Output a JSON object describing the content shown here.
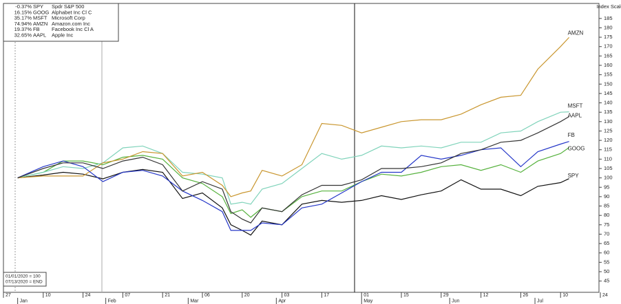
{
  "chart_data": {
    "type": "line",
    "axis_title": "Index Scale",
    "x": [
      "2020-01-01",
      "2020-01-10",
      "2020-01-17",
      "2020-01-24",
      "2020-01-31",
      "2020-02-07",
      "2020-02-14",
      "2020-02-21",
      "2020-02-28",
      "2020-03-06",
      "2020-03-13",
      "2020-03-16",
      "2020-03-20",
      "2020-03-23",
      "2020-03-27",
      "2020-04-03",
      "2020-04-10",
      "2020-04-17",
      "2020-04-24",
      "2020-05-01",
      "2020-05-08",
      "2020-05-15",
      "2020-05-22",
      "2020-05-29",
      "2020-06-05",
      "2020-06-12",
      "2020-06-19",
      "2020-06-26",
      "2020-07-02",
      "2020-07-10",
      "2020-07-13"
    ],
    "series": [
      {
        "name": "SPY",
        "change": "-0.37%",
        "description": "Spdr S&P 500",
        "color": "#111111",
        "values": [
          100,
          101.5,
          103,
          102,
          99.5,
          103,
          104.5,
          103,
          89,
          92,
          84,
          75,
          72,
          69.5,
          77,
          75,
          86,
          88,
          87,
          88,
          90.5,
          88.5,
          91,
          93,
          99,
          94,
          94,
          90.5,
          95.5,
          97.5,
          99.6
        ]
      },
      {
        "name": "GOOG",
        "change": "16.15%",
        "description": "Alphabet Inc Cl C",
        "color": "#55b13c",
        "values": [
          100,
          103,
          109,
          109,
          107,
          111,
          112,
          110,
          100,
          97,
          90,
          81,
          83,
          79,
          84,
          82,
          90,
          93,
          93,
          98,
          102,
          101,
          103,
          106,
          107,
          104,
          107,
          103,
          109,
          113,
          116.2
        ]
      },
      {
        "name": "MSFT",
        "change": "35.17%",
        "description": "Microsoft Corp",
        "color": "#7fd3ba",
        "values": [
          100,
          103,
          106,
          105,
          108,
          116,
          117,
          113,
          103,
          102,
          100,
          86,
          87,
          86,
          94,
          97,
          105,
          113,
          110,
          112,
          117,
          116,
          117,
          116,
          119,
          119,
          124,
          125,
          130,
          135,
          135.2
        ]
      },
      {
        "name": "AMZN",
        "change": "74.94%",
        "description": "Amazon.com Inc",
        "color": "#c9962e",
        "values": [
          100,
          101,
          101,
          101,
          108,
          110,
          114,
          113,
          101,
          103,
          96,
          90,
          92,
          93,
          104,
          101,
          107,
          129,
          128,
          124,
          127,
          130,
          131,
          131,
          134,
          139,
          143,
          144,
          158,
          170,
          174.9
        ]
      },
      {
        "name": "FB",
        "change": "19.37%",
        "description": "Facebook Inc Cl A",
        "color": "#2436c8",
        "values": [
          100,
          106,
          109,
          106,
          98,
          103,
          104,
          101,
          93,
          88,
          82,
          72,
          72,
          72,
          76,
          75,
          84,
          86,
          92,
          98,
          103,
          103,
          112,
          110,
          112,
          115,
          116,
          106,
          114,
          118,
          119.4
        ]
      },
      {
        "name": "AAPL",
        "change": "32.65%",
        "description": "Apple Inc",
        "color": "#333333",
        "values": [
          100,
          105,
          108,
          108,
          105,
          109,
          111,
          107,
          93,
          98,
          94,
          82,
          78,
          76,
          84,
          82,
          91,
          96,
          96,
          99,
          105,
          105,
          106,
          108,
          113,
          115,
          119,
          120,
          124,
          130,
          132.7
        ]
      }
    ],
    "base_note": "01/01/2020 = 100",
    "end_note": "07/13/2020 = END",
    "xlim": [
      "2019-12-27",
      "2020-07-24"
    ],
    "xticks": [
      {
        "value": "2019-12-27",
        "label": "27"
      },
      {
        "value": "2020-01-10",
        "label": "10"
      },
      {
        "value": "2020-01-24",
        "label": "24"
      },
      {
        "value": "2020-02-07",
        "label": "07"
      },
      {
        "value": "2020-02-21",
        "label": "21"
      },
      {
        "value": "2020-03-06",
        "label": "06"
      },
      {
        "value": "2020-03-20",
        "label": "20"
      },
      {
        "value": "2020-04-03",
        "label": "03"
      },
      {
        "value": "2020-04-17",
        "label": "17"
      },
      {
        "value": "2020-05-01",
        "label": "01"
      },
      {
        "value": "2020-05-15",
        "label": "15"
      },
      {
        "value": "2020-05-29",
        "label": "29"
      },
      {
        "value": "2020-06-12",
        "label": "12"
      },
      {
        "value": "2020-06-26",
        "label": "26"
      },
      {
        "value": "2020-07-10",
        "label": "10"
      },
      {
        "value": "2020-07-24",
        "label": "24"
      }
    ],
    "months": [
      {
        "value": "2020-01-01",
        "label": "Jan"
      },
      {
        "value": "2020-02-01",
        "label": "Feb"
      },
      {
        "value": "2020-03-01",
        "label": "Mar"
      },
      {
        "value": "2020-04-01",
        "label": "Apr"
      },
      {
        "value": "2020-05-01",
        "label": "May"
      },
      {
        "value": "2020-06-01",
        "label": "Jun"
      },
      {
        "value": "2020-07-01",
        "label": "Jul"
      }
    ],
    "ylim": [
      39,
      193
    ],
    "yticks": [
      45,
      50,
      55,
      60,
      65,
      70,
      75,
      80,
      85,
      90,
      95,
      100,
      105,
      110,
      115,
      120,
      125,
      130,
      135,
      140,
      145,
      150,
      155,
      160,
      165,
      170,
      175,
      180,
      185
    ],
    "grid": false
  }
}
